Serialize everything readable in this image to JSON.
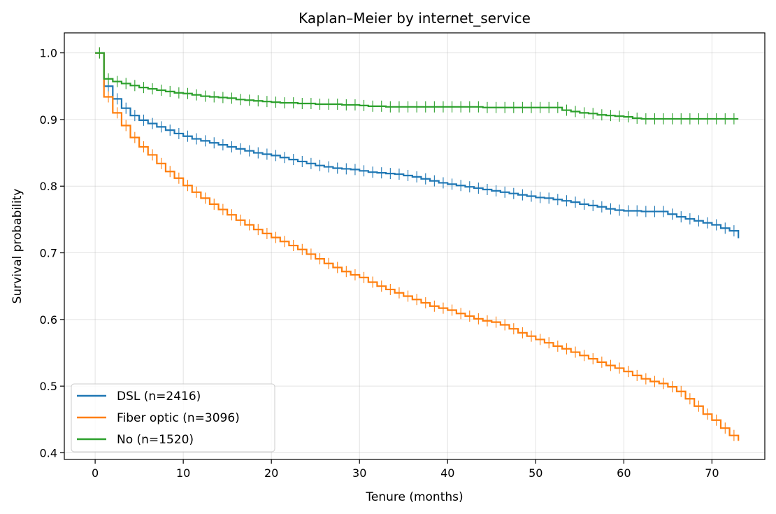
{
  "chart_data": {
    "type": "line",
    "title": "Kaplan–Meier by internet_service",
    "xlabel": "Tenure (months)",
    "ylabel": "Survival probability",
    "xlim": [
      -3.5,
      76
    ],
    "ylim": [
      0.39,
      1.03
    ],
    "xticks": [
      0,
      10,
      20,
      30,
      40,
      50,
      60,
      70
    ],
    "yticks": [
      0.4,
      0.5,
      0.6,
      0.7,
      0.8,
      0.9,
      1.0
    ],
    "xtick_labels": [
      "0",
      "10",
      "20",
      "30",
      "40",
      "50",
      "60",
      "70"
    ],
    "ytick_labels": [
      "0.4",
      "0.5",
      "0.6",
      "0.7",
      "0.8",
      "0.9",
      "1.0"
    ],
    "grid": true,
    "legend_position": "lower-left",
    "step": "post",
    "censor_markers": true,
    "series": [
      {
        "name": "DSL (n=2416)",
        "color": "#1f77b4",
        "x": [
          0,
          1,
          2,
          3,
          4,
          5,
          6,
          7,
          8,
          9,
          10,
          11,
          12,
          13,
          14,
          15,
          16,
          17,
          18,
          19,
          20,
          21,
          22,
          23,
          24,
          25,
          26,
          27,
          28,
          29,
          30,
          31,
          32,
          33,
          34,
          35,
          36,
          37,
          38,
          39,
          40,
          41,
          42,
          43,
          44,
          45,
          46,
          47,
          48,
          49,
          50,
          51,
          52,
          53,
          54,
          55,
          56,
          57,
          58,
          59,
          60,
          61,
          62,
          63,
          64,
          65,
          66,
          67,
          68,
          69,
          70,
          71,
          72,
          73
        ],
        "y": [
          1.0,
          0.95,
          0.931,
          0.917,
          0.906,
          0.899,
          0.894,
          0.889,
          0.884,
          0.879,
          0.875,
          0.871,
          0.868,
          0.865,
          0.862,
          0.859,
          0.856,
          0.853,
          0.85,
          0.848,
          0.846,
          0.843,
          0.84,
          0.837,
          0.834,
          0.831,
          0.829,
          0.827,
          0.826,
          0.825,
          0.823,
          0.821,
          0.82,
          0.819,
          0.818,
          0.816,
          0.814,
          0.811,
          0.808,
          0.805,
          0.803,
          0.801,
          0.799,
          0.797,
          0.795,
          0.793,
          0.791,
          0.789,
          0.787,
          0.785,
          0.783,
          0.782,
          0.78,
          0.778,
          0.776,
          0.773,
          0.771,
          0.769,
          0.766,
          0.764,
          0.763,
          0.763,
          0.762,
          0.762,
          0.762,
          0.758,
          0.754,
          0.751,
          0.748,
          0.745,
          0.742,
          0.737,
          0.733,
          0.722
        ]
      },
      {
        "name": "Fiber optic (n=3096)",
        "color": "#ff7f0e",
        "x": [
          0,
          1,
          2,
          3,
          4,
          5,
          6,
          7,
          8,
          9,
          10,
          11,
          12,
          13,
          14,
          15,
          16,
          17,
          18,
          19,
          20,
          21,
          22,
          23,
          24,
          25,
          26,
          27,
          28,
          29,
          30,
          31,
          32,
          33,
          34,
          35,
          36,
          37,
          38,
          39,
          40,
          41,
          42,
          43,
          44,
          45,
          46,
          47,
          48,
          49,
          50,
          51,
          52,
          53,
          54,
          55,
          56,
          57,
          58,
          59,
          60,
          61,
          62,
          63,
          64,
          65,
          66,
          67,
          68,
          69,
          70,
          71,
          72,
          73
        ],
        "y": [
          1.0,
          0.934,
          0.91,
          0.891,
          0.873,
          0.859,
          0.847,
          0.834,
          0.822,
          0.812,
          0.801,
          0.791,
          0.782,
          0.773,
          0.765,
          0.757,
          0.749,
          0.742,
          0.735,
          0.729,
          0.723,
          0.717,
          0.711,
          0.705,
          0.698,
          0.691,
          0.684,
          0.678,
          0.672,
          0.667,
          0.663,
          0.656,
          0.65,
          0.645,
          0.64,
          0.635,
          0.63,
          0.625,
          0.62,
          0.617,
          0.614,
          0.609,
          0.605,
          0.601,
          0.598,
          0.596,
          0.592,
          0.586,
          0.58,
          0.575,
          0.57,
          0.565,
          0.56,
          0.556,
          0.551,
          0.546,
          0.541,
          0.536,
          0.531,
          0.527,
          0.522,
          0.516,
          0.511,
          0.507,
          0.504,
          0.499,
          0.492,
          0.481,
          0.47,
          0.458,
          0.449,
          0.437,
          0.426,
          0.418
        ]
      },
      {
        "name": "No (n=1520)",
        "color": "#2ca02c",
        "x": [
          0,
          1,
          2,
          3,
          4,
          5,
          6,
          7,
          8,
          9,
          10,
          11,
          12,
          13,
          14,
          15,
          16,
          17,
          18,
          19,
          20,
          21,
          22,
          23,
          24,
          25,
          26,
          27,
          28,
          29,
          30,
          31,
          32,
          33,
          34,
          35,
          36,
          37,
          38,
          39,
          40,
          41,
          42,
          43,
          44,
          45,
          46,
          47,
          48,
          49,
          50,
          51,
          52,
          53,
          54,
          55,
          56,
          57,
          58,
          59,
          60,
          61,
          62,
          63,
          64,
          65,
          66,
          67,
          68,
          69,
          70,
          71,
          72,
          73
        ],
        "y": [
          1.0,
          0.961,
          0.957,
          0.954,
          0.951,
          0.948,
          0.946,
          0.944,
          0.942,
          0.94,
          0.939,
          0.937,
          0.935,
          0.934,
          0.933,
          0.932,
          0.93,
          0.929,
          0.928,
          0.927,
          0.926,
          0.925,
          0.925,
          0.924,
          0.924,
          0.923,
          0.923,
          0.923,
          0.922,
          0.922,
          0.921,
          0.92,
          0.92,
          0.919,
          0.919,
          0.919,
          0.919,
          0.919,
          0.919,
          0.919,
          0.919,
          0.919,
          0.919,
          0.919,
          0.918,
          0.918,
          0.918,
          0.918,
          0.918,
          0.918,
          0.918,
          0.918,
          0.918,
          0.914,
          0.912,
          0.91,
          0.909,
          0.907,
          0.906,
          0.905,
          0.904,
          0.902,
          0.901,
          0.901,
          0.901,
          0.901,
          0.901,
          0.901,
          0.901,
          0.901,
          0.901,
          0.901,
          0.901,
          0.901
        ]
      }
    ]
  }
}
